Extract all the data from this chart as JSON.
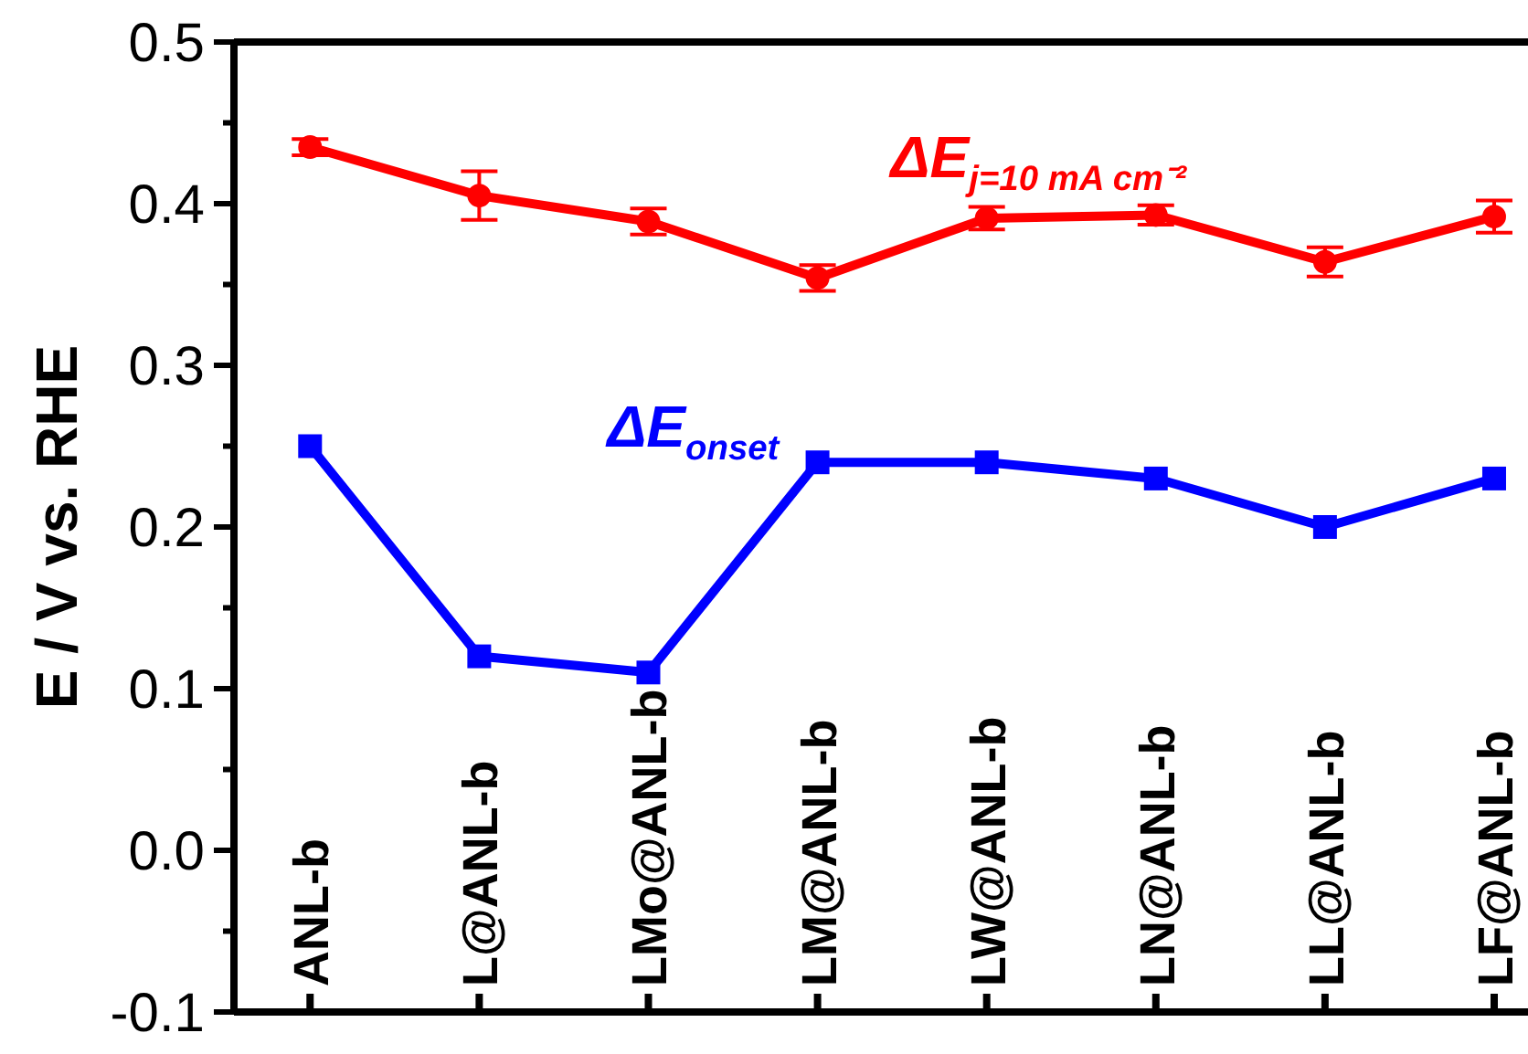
{
  "chart_data": {
    "type": "line",
    "ylabel": "E / V vs. RHE",
    "categories": [
      "ANL-b",
      "L@ANL-b",
      "LMo@ANL-b",
      "LM@ANL-b",
      "LW@ANL-b",
      "LN@ANL-b",
      "LL@ANL-b",
      "LF@ANL-b"
    ],
    "series": [
      {
        "name": "ΔE$_{j=10 mA cm⁻²}$",
        "color": "#ff0000",
        "marker": "circle",
        "values": [
          0.435,
          0.405,
          0.389,
          0.354,
          0.391,
          0.393,
          0.364,
          0.392
        ],
        "errors": [
          0.005,
          0.015,
          0.008,
          0.008,
          0.007,
          0.006,
          0.009,
          0.01
        ]
      },
      {
        "name": "ΔE$_{onset}$",
        "color": "#0000ff",
        "marker": "square",
        "values": [
          0.25,
          0.12,
          0.11,
          0.24,
          0.24,
          0.23,
          0.2,
          0.23
        ]
      }
    ],
    "ylim": [
      -0.1,
      0.5
    ],
    "yticks": [
      {
        "value": -0.1,
        "label": "-0.1"
      },
      {
        "value": -0.05,
        "label": null
      },
      {
        "value": 0,
        "label": "0.0"
      },
      {
        "value": 0.05,
        "label": null
      },
      {
        "value": 0.1,
        "label": "0.1"
      },
      {
        "value": 0.15,
        "label": null
      },
      {
        "value": 0.2,
        "label": "0.2"
      },
      {
        "value": 0.25,
        "label": null
      },
      {
        "value": 0.3,
        "label": "0.3"
      },
      {
        "value": 0.35,
        "label": null
      },
      {
        "value": 0.4,
        "label": "0.4"
      },
      {
        "value": 0.45,
        "label": null
      },
      {
        "value": 0.5,
        "label": "0.5"
      }
    ],
    "grid": false,
    "legend": false,
    "line_style": "solid"
  }
}
